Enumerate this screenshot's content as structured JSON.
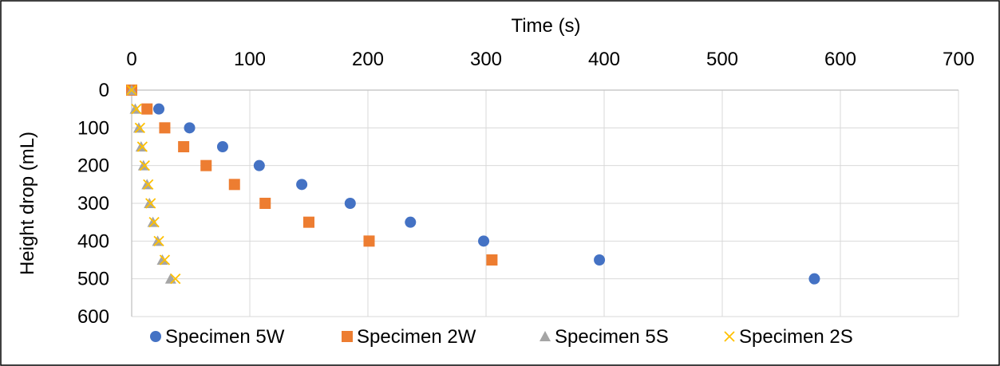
{
  "chart_data": {
    "type": "scatter",
    "title": "",
    "xlabel": "Time (s)",
    "ylabel": "Height drop (mL)",
    "xlim": [
      0,
      700
    ],
    "ylim": [
      0,
      600
    ],
    "x_axis_position": "top",
    "y_axis_reversed": true,
    "x_ticks": [
      "0",
      "100",
      "200",
      "300",
      "400",
      "500",
      "600",
      "700"
    ],
    "y_ticks": [
      "0",
      "100",
      "200",
      "300",
      "400",
      "500",
      "600"
    ],
    "grid": true,
    "legend_position": "bottom",
    "series": [
      {
        "name": "Specimen 5W",
        "marker": "circle",
        "color": "#4472C4",
        "points": [
          [
            0,
            0
          ],
          [
            23,
            50
          ],
          [
            49,
            100
          ],
          [
            77,
            150
          ],
          [
            108,
            200
          ],
          [
            144,
            250
          ],
          [
            185,
            300
          ],
          [
            236,
            350
          ],
          [
            298,
            400
          ],
          [
            396,
            450
          ],
          [
            578,
            500
          ]
        ]
      },
      {
        "name": "Specimen 2W",
        "marker": "square",
        "color": "#ED7D31",
        "points": [
          [
            0,
            0
          ],
          [
            13,
            50
          ],
          [
            28,
            100
          ],
          [
            44,
            150
          ],
          [
            63,
            200
          ],
          [
            87,
            250
          ],
          [
            113,
            300
          ],
          [
            150,
            350
          ],
          [
            201,
            400
          ],
          [
            305,
            450
          ]
        ]
      },
      {
        "name": "Specimen 5S",
        "marker": "triangle",
        "color": "#A5A5A5",
        "points": [
          [
            0,
            0
          ],
          [
            3,
            50
          ],
          [
            6,
            100
          ],
          [
            8,
            150
          ],
          [
            10,
            200
          ],
          [
            13,
            250
          ],
          [
            15,
            300
          ],
          [
            18,
            350
          ],
          [
            22,
            400
          ],
          [
            26,
            450
          ],
          [
            33,
            500
          ]
        ]
      },
      {
        "name": "Specimen 2S",
        "marker": "x",
        "color": "#FFC000",
        "points": [
          [
            0,
            0
          ],
          [
            4,
            50
          ],
          [
            7,
            100
          ],
          [
            9,
            150
          ],
          [
            11,
            200
          ],
          [
            14,
            250
          ],
          [
            16,
            300
          ],
          [
            19,
            350
          ],
          [
            23,
            400
          ],
          [
            28,
            450
          ],
          [
            37,
            500
          ]
        ]
      }
    ]
  }
}
